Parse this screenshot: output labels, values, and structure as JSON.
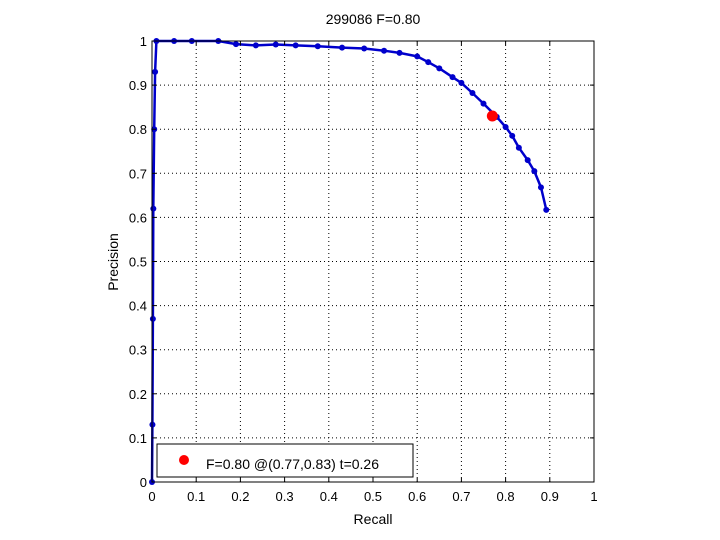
{
  "colors": {
    "curve": "#0000cc",
    "marker": "#ff0000",
    "axis": "#000000",
    "grid": "#000000",
    "background": "#ffffff"
  },
  "chart_data": {
    "type": "line",
    "title": "299086 F=0.80",
    "xlabel": "Recall",
    "ylabel": "Precision",
    "xlim": [
      0,
      1
    ],
    "ylim": [
      0,
      1
    ],
    "grid": true,
    "legend_position": "bottom-left",
    "x_ticks": [
      "0",
      "0.1",
      "0.2",
      "0.3",
      "0.4",
      "0.5",
      "0.6",
      "0.7",
      "0.8",
      "0.9",
      "1"
    ],
    "y_ticks": [
      "0",
      "0.1",
      "0.2",
      "0.3",
      "0.4",
      "0.5",
      "0.6",
      "0.7",
      "0.8",
      "0.9",
      "1"
    ],
    "series": [
      {
        "x": [
          0.0,
          0.001,
          0.002,
          0.003,
          0.005,
          0.007,
          0.01,
          0.05,
          0.09,
          0.15,
          0.19,
          0.235,
          0.28,
          0.325,
          0.375,
          0.43,
          0.48,
          0.525,
          0.56,
          0.6,
          0.625,
          0.65,
          0.68,
          0.7,
          0.725,
          0.75,
          0.78,
          0.8,
          0.815,
          0.83,
          0.85,
          0.865,
          0.88,
          0.892
        ],
        "y": [
          0.0,
          0.13,
          0.37,
          0.62,
          0.8,
          0.93,
          1.0,
          1.0,
          1.0,
          1.0,
          0.993,
          0.99,
          0.992,
          0.99,
          0.988,
          0.985,
          0.983,
          0.978,
          0.973,
          0.965,
          0.952,
          0.938,
          0.918,
          0.905,
          0.882,
          0.858,
          0.828,
          0.805,
          0.785,
          0.758,
          0.73,
          0.705,
          0.668,
          0.617
        ]
      }
    ],
    "highlight": {
      "x": 0.77,
      "y": 0.83
    },
    "legend": {
      "label": "F=0.80 @(0.77,0.83) t=0.26"
    }
  }
}
